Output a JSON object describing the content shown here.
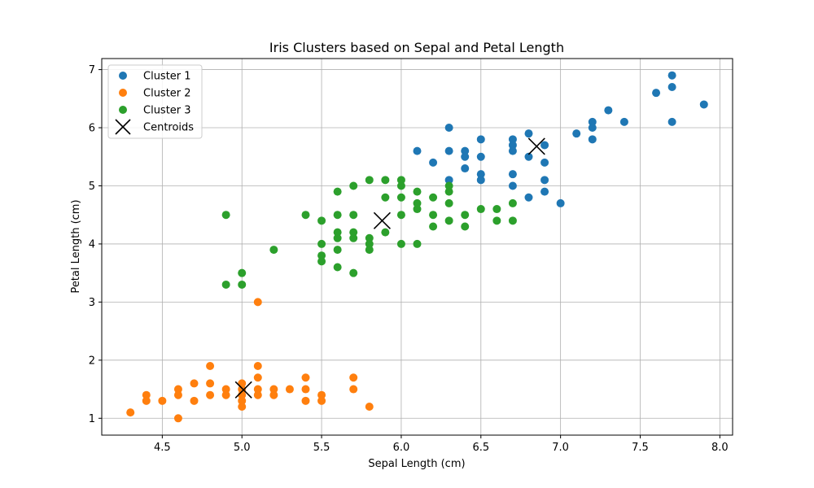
{
  "chart_data": {
    "type": "scatter",
    "title": "Iris Clusters based on Sepal and Petal Length",
    "xlabel": "Sepal Length (cm)",
    "ylabel": "Petal Length (cm)",
    "xlim": [
      4.12,
      8.08
    ],
    "ylim": [
      0.71,
      7.19
    ],
    "xticks": [
      4.5,
      5.0,
      5.5,
      6.0,
      6.5,
      7.0,
      7.5,
      8.0
    ],
    "xtick_labels": [
      "4.5",
      "5.0",
      "5.5",
      "6.0",
      "6.5",
      "7.0",
      "7.5",
      "8.0"
    ],
    "yticks": [
      1,
      2,
      3,
      4,
      5,
      6,
      7
    ],
    "ytick_labels": [
      "1",
      "2",
      "3",
      "4",
      "5",
      "6",
      "7"
    ],
    "grid": true,
    "legend_position": "top-left",
    "series": [
      {
        "name": "Cluster 1",
        "color": "#1f77b4",
        "marker": "circle",
        "points": [
          [
            7.7,
            6.9
          ],
          [
            7.7,
            6.7
          ],
          [
            7.6,
            6.6
          ],
          [
            7.9,
            6.4
          ],
          [
            7.3,
            6.3
          ],
          [
            7.7,
            6.1
          ],
          [
            7.4,
            6.1
          ],
          [
            7.2,
            6.1
          ],
          [
            7.2,
            6.0
          ],
          [
            6.3,
            6.0
          ],
          [
            7.1,
            5.9
          ],
          [
            6.8,
            5.9
          ],
          [
            7.2,
            5.8
          ],
          [
            6.7,
            5.8
          ],
          [
            6.5,
            5.8
          ],
          [
            6.9,
            5.7
          ],
          [
            6.7,
            5.7
          ],
          [
            6.1,
            5.6
          ],
          [
            6.3,
            5.6
          ],
          [
            6.4,
            5.6
          ],
          [
            6.7,
            5.6
          ],
          [
            6.8,
            5.5
          ],
          [
            6.4,
            5.5
          ],
          [
            6.5,
            5.5
          ],
          [
            6.2,
            5.4
          ],
          [
            6.9,
            5.4
          ],
          [
            6.4,
            5.3
          ],
          [
            6.5,
            5.2
          ],
          [
            6.7,
            5.2
          ],
          [
            6.3,
            5.1
          ],
          [
            6.5,
            5.1
          ],
          [
            6.9,
            5.1
          ],
          [
            6.7,
            5.0
          ],
          [
            6.9,
            4.9
          ],
          [
            6.8,
            4.8
          ],
          [
            7.0,
            4.7
          ]
        ]
      },
      {
        "name": "Cluster 2",
        "color": "#ff7f0e",
        "marker": "circle",
        "points": [
          [
            5.1,
            3.0
          ],
          [
            4.8,
            1.9
          ],
          [
            5.1,
            1.9
          ],
          [
            5.0,
            1.6
          ],
          [
            4.7,
            1.6
          ],
          [
            4.8,
            1.6
          ],
          [
            5.1,
            1.7
          ],
          [
            5.4,
            1.7
          ],
          [
            5.7,
            1.7
          ],
          [
            5.0,
            1.5
          ],
          [
            4.6,
            1.5
          ],
          [
            4.9,
            1.5
          ],
          [
            5.2,
            1.5
          ],
          [
            5.3,
            1.5
          ],
          [
            5.4,
            1.5
          ],
          [
            5.7,
            1.5
          ],
          [
            5.1,
            1.5
          ],
          [
            4.4,
            1.4
          ],
          [
            4.6,
            1.4
          ],
          [
            4.8,
            1.4
          ],
          [
            4.9,
            1.4
          ],
          [
            5.0,
            1.4
          ],
          [
            5.1,
            1.4
          ],
          [
            5.2,
            1.4
          ],
          [
            5.5,
            1.4
          ],
          [
            4.4,
            1.3
          ],
          [
            4.5,
            1.3
          ],
          [
            4.7,
            1.3
          ],
          [
            5.0,
            1.3
          ],
          [
            5.4,
            1.3
          ],
          [
            5.5,
            1.3
          ],
          [
            5.0,
            1.2
          ],
          [
            5.8,
            1.2
          ],
          [
            4.3,
            1.1
          ],
          [
            4.6,
            1.0
          ]
        ]
      },
      {
        "name": "Cluster 3",
        "color": "#2ca02c",
        "marker": "circle",
        "points": [
          [
            5.8,
            5.1
          ],
          [
            5.9,
            5.1
          ],
          [
            6.0,
            5.1
          ],
          [
            5.7,
            5.0
          ],
          [
            6.0,
            5.0
          ],
          [
            6.3,
            5.0
          ],
          [
            5.6,
            4.9
          ],
          [
            6.1,
            4.9
          ],
          [
            6.3,
            4.9
          ],
          [
            5.9,
            4.8
          ],
          [
            6.0,
            4.8
          ],
          [
            6.2,
            4.8
          ],
          [
            6.1,
            4.7
          ],
          [
            6.3,
            4.7
          ],
          [
            6.7,
            4.7
          ],
          [
            6.1,
            4.6
          ],
          [
            6.5,
            4.6
          ],
          [
            6.6,
            4.6
          ],
          [
            4.9,
            4.5
          ],
          [
            5.4,
            4.5
          ],
          [
            5.6,
            4.5
          ],
          [
            5.7,
            4.5
          ],
          [
            6.0,
            4.5
          ],
          [
            6.2,
            4.5
          ],
          [
            6.4,
            4.5
          ],
          [
            5.5,
            4.4
          ],
          [
            6.3,
            4.4
          ],
          [
            6.6,
            4.4
          ],
          [
            6.7,
            4.4
          ],
          [
            6.2,
            4.3
          ],
          [
            6.4,
            4.3
          ],
          [
            5.6,
            4.2
          ],
          [
            5.7,
            4.2
          ],
          [
            5.9,
            4.2
          ],
          [
            5.6,
            4.1
          ],
          [
            5.7,
            4.1
          ],
          [
            5.8,
            4.1
          ],
          [
            5.5,
            4.0
          ],
          [
            5.8,
            4.0
          ],
          [
            6.0,
            4.0
          ],
          [
            6.1,
            4.0
          ],
          [
            5.2,
            3.9
          ],
          [
            5.6,
            3.9
          ],
          [
            5.8,
            3.9
          ],
          [
            5.5,
            3.8
          ],
          [
            5.5,
            3.7
          ],
          [
            5.6,
            3.6
          ],
          [
            5.0,
            3.5
          ],
          [
            5.7,
            3.5
          ],
          [
            4.9,
            3.3
          ],
          [
            5.0,
            3.3
          ]
        ]
      },
      {
        "name": "Centroids",
        "color": "#000000",
        "marker": "x",
        "points": [
          [
            6.85,
            5.68
          ],
          [
            5.01,
            1.49
          ],
          [
            5.88,
            4.4
          ]
        ]
      }
    ]
  }
}
